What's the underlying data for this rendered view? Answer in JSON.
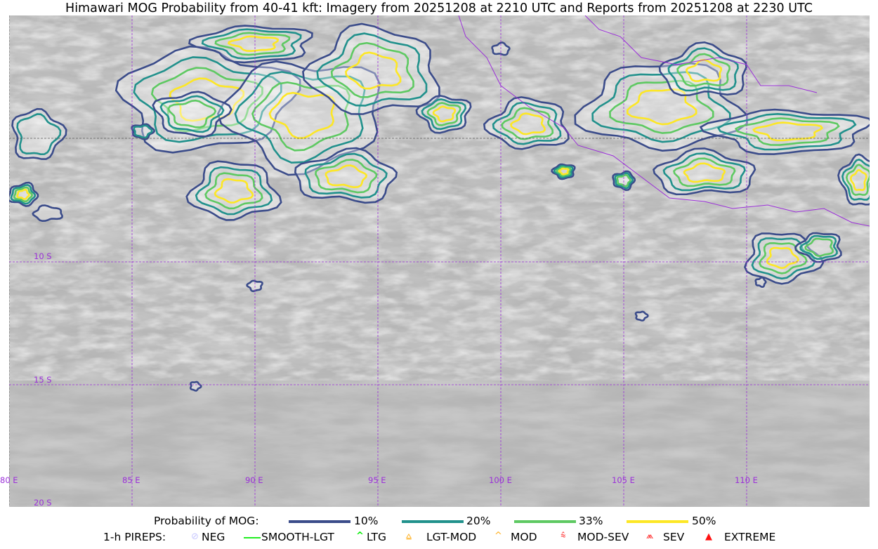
{
  "title": "Himawari MOG Probability from 40-41 kft: Imagery from 20251208 at 2210 UTC and Reports from 20251208 at 2230 UTC",
  "map": {
    "lon_labels": [
      "80 E",
      "85 E",
      "90 E",
      "95 E",
      "100 E",
      "105 E",
      "110 E"
    ],
    "lat_labels": [
      "10 S",
      "15 S",
      "20 S"
    ],
    "gridline_color": "#9b30d9",
    "coastline_color": "#9b30d9"
  },
  "legend": {
    "probability": {
      "label": "Probability of MOG:",
      "levels": [
        {
          "label": "10%",
          "color": "#3b4c8a"
        },
        {
          "label": "20%",
          "color": "#21918c"
        },
        {
          "label": "33%",
          "color": "#5ec962"
        },
        {
          "label": "50%",
          "color": "#fde725"
        }
      ]
    },
    "pireps": {
      "label": "1-h PIREPS:",
      "items": [
        {
          "label": "NEG",
          "icon": "neg-circle-icon",
          "color": "#c8c8ff"
        },
        {
          "label": "SMOOTH-LGT",
          "icon": "line-icon",
          "color": "#22ee22"
        },
        {
          "label": "LTG",
          "icon": "caret-icon",
          "color": "#00ee00"
        },
        {
          "label": "LGT-MOD",
          "icon": "caret-bar-icon",
          "color": "#ffb020"
        },
        {
          "label": "MOD",
          "icon": "caret-icon",
          "color": "#ffb020"
        },
        {
          "label": "MOD-SEV",
          "icon": "double-caret-bar-icon",
          "color": "#ff2020"
        },
        {
          "label": "SEV",
          "icon": "double-caret-icon",
          "color": "#ff2020"
        },
        {
          "label": "EXTREME",
          "icon": "filled-triangle-icon",
          "color": "#ff1010"
        }
      ]
    }
  }
}
